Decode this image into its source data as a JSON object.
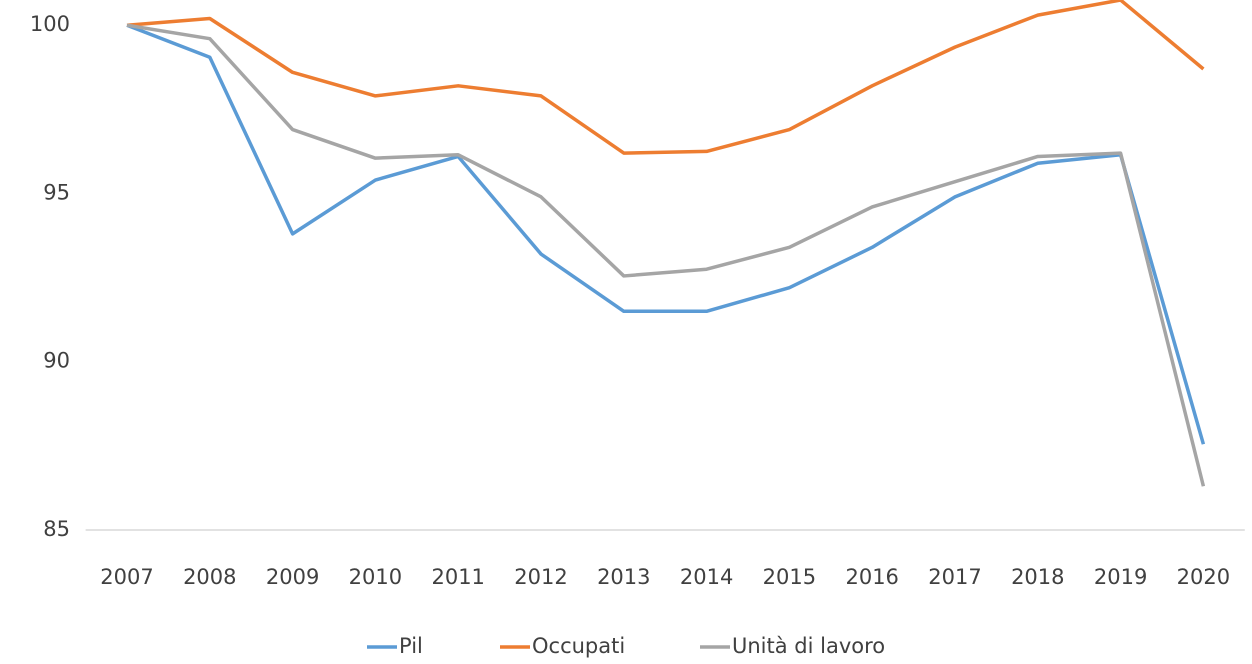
{
  "chart_data": {
    "type": "line",
    "categories": [
      "2007",
      "2008",
      "2009",
      "2010",
      "2011",
      "2012",
      "2013",
      "2014",
      "2015",
      "2016",
      "2017",
      "2018",
      "2019",
      "2020"
    ],
    "series": [
      {
        "name": "Pil",
        "color": "#5b9bd5",
        "values": [
          100,
          99.05,
          93.8,
          95.4,
          96.1,
          93.2,
          91.5,
          91.5,
          92.2,
          93.4,
          94.9,
          95.9,
          96.15,
          87.55
        ]
      },
      {
        "name": "Occupati",
        "color": "#ed7d31",
        "values": [
          100,
          100.2,
          98.6,
          97.9,
          98.2,
          97.9,
          96.2,
          96.25,
          96.9,
          98.2,
          99.35,
          100.3,
          100.75,
          98.7
        ]
      },
      {
        "name": "Unità di lavoro",
        "color": "#a5a5a5",
        "values": [
          100,
          99.6,
          96.9,
          96.05,
          96.15,
          94.9,
          92.55,
          92.75,
          93.4,
          94.6,
          95.35,
          96.1,
          96.2,
          86.3
        ]
      }
    ],
    "ylim": [
      85,
      100.75
    ],
    "yticks": [
      85,
      90,
      95,
      100
    ],
    "grid": false,
    "legend": "bottom"
  }
}
